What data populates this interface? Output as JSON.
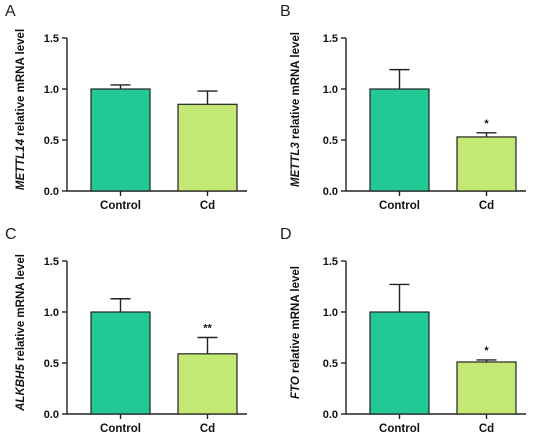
{
  "chart_data": [
    {
      "type": "bar",
      "panel": "A",
      "gene": "METTL14",
      "ylabel_suffix": " relative mRNA level",
      "categories": [
        "Control",
        "Cd"
      ],
      "values": [
        1.0,
        0.85
      ],
      "errors": [
        0.04,
        0.13
      ],
      "significance": [
        "",
        ""
      ],
      "ylim": [
        0,
        1.5
      ],
      "yticks": [
        "0.0",
        "0.5",
        "1.0",
        "1.5"
      ]
    },
    {
      "type": "bar",
      "panel": "B",
      "gene": "METTL3",
      "ylabel_suffix": " relative mRNA level",
      "categories": [
        "Control",
        "Cd"
      ],
      "values": [
        1.0,
        0.53
      ],
      "errors": [
        0.19,
        0.04
      ],
      "significance": [
        "",
        "*"
      ],
      "ylim": [
        0,
        1.5
      ],
      "yticks": [
        "0.0",
        "0.5",
        "1.0",
        "1.5"
      ]
    },
    {
      "type": "bar",
      "panel": "C",
      "gene": "ALKBH5",
      "ylabel_suffix": " relative mRNA level",
      "categories": [
        "Control",
        "Cd"
      ],
      "values": [
        1.0,
        0.59
      ],
      "errors": [
        0.13,
        0.16
      ],
      "significance": [
        "",
        "**"
      ],
      "ylim": [
        0,
        1.5
      ],
      "yticks": [
        "0.0",
        "0.5",
        "1.0",
        "1.5"
      ]
    },
    {
      "type": "bar",
      "panel": "D",
      "gene": "FTO",
      "ylabel_suffix": " relative mRNA level",
      "categories": [
        "Control",
        "Cd"
      ],
      "values": [
        1.0,
        0.51
      ],
      "errors": [
        0.27,
        0.02
      ],
      "significance": [
        "",
        "*"
      ],
      "ylim": [
        0,
        1.5
      ],
      "yticks": [
        "0.0",
        "0.5",
        "1.0",
        "1.5"
      ]
    }
  ],
  "colors": {
    "control": "#22c995",
    "cd": "#c3e874",
    "axis": "#222222"
  }
}
